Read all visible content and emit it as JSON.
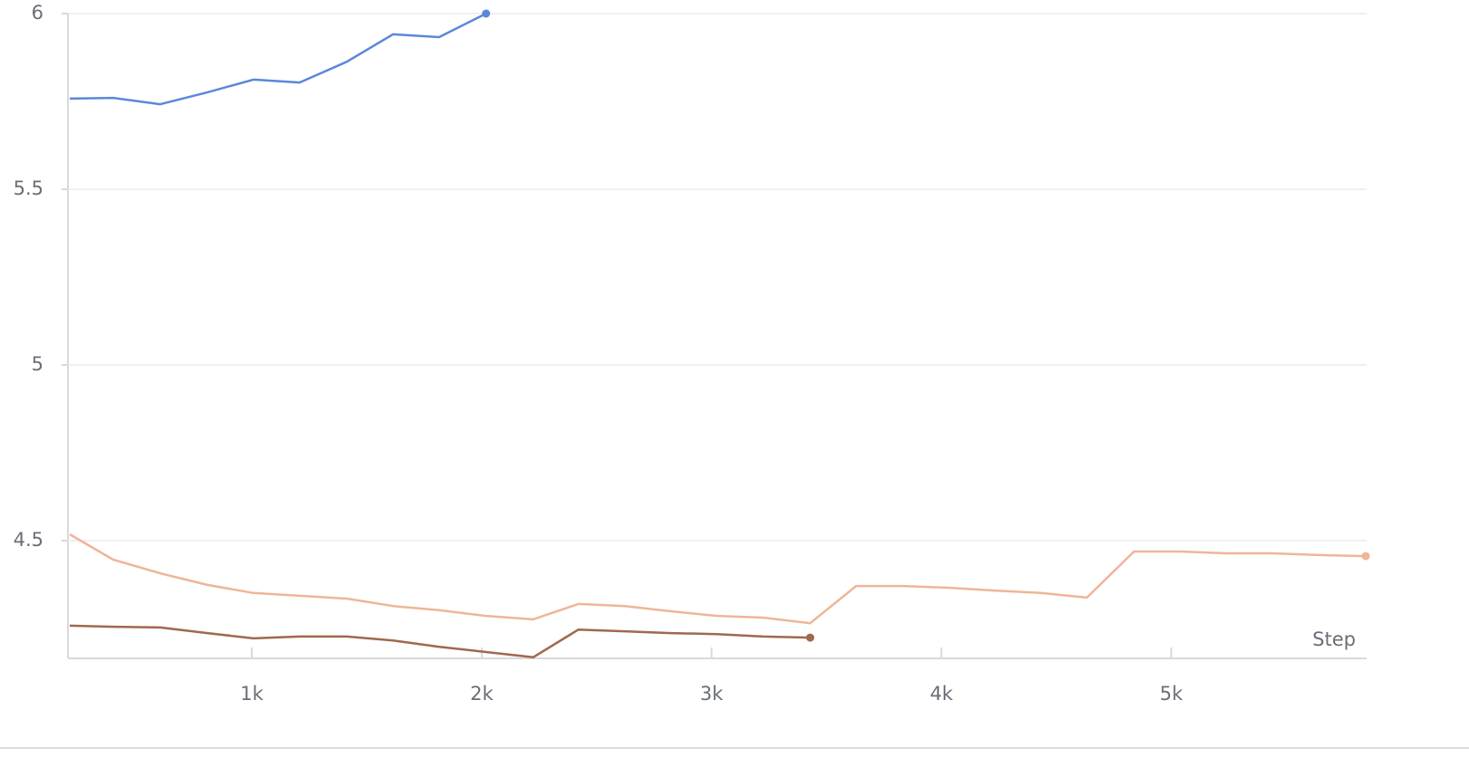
{
  "chart_data": {
    "type": "line",
    "xlabel": "Step",
    "x": [
      208,
      397,
      602,
      807,
      1007,
      1208,
      1413,
      1614,
      1815,
      2019,
      2224,
      2421,
      2622,
      2823,
      3024,
      3224,
      3429,
      3629,
      3830,
      4031,
      4231,
      4432,
      4633,
      4838,
      5039,
      5239,
      5440,
      5641,
      5846
    ],
    "series": [
      {
        "color": "#5b87da",
        "values": [
          5.758,
          5.76,
          5.742,
          5.776,
          5.812,
          5.804,
          5.863,
          5.941,
          5.933,
          6.0,
          null,
          null,
          null,
          null,
          null,
          null,
          null,
          null,
          null,
          null,
          null,
          null,
          null,
          null,
          null,
          null,
          null,
          null,
          null
        ]
      },
      {
        "color": "#a0684c",
        "values": [
          4.258,
          4.255,
          4.253,
          4.237,
          4.222,
          4.227,
          4.227,
          4.216,
          4.198,
          4.183,
          4.168,
          4.247,
          4.242,
          4.237,
          4.234,
          4.227,
          4.224,
          null,
          null,
          null,
          null,
          null,
          null,
          null,
          null,
          null,
          null,
          null,
          null
        ]
      },
      {
        "color": "#efb598",
        "values": [
          4.518,
          4.446,
          4.407,
          4.374,
          4.351,
          4.343,
          4.335,
          4.314,
          4.302,
          4.286,
          4.276,
          4.32,
          4.314,
          4.299,
          4.286,
          4.281,
          4.265,
          4.371,
          4.371,
          4.366,
          4.358,
          4.351,
          4.338,
          4.469,
          4.469,
          4.464,
          4.464,
          4.459,
          4.456
        ]
      }
    ],
    "xlim": [
      200,
      5850
    ],
    "ylim": [
      4.165,
      6
    ],
    "xticks": [
      {
        "value": 1000,
        "label": "1k"
      },
      {
        "value": 2000,
        "label": "2k"
      },
      {
        "value": 3000,
        "label": "3k"
      },
      {
        "value": 4000,
        "label": "4k"
      },
      {
        "value": 5000,
        "label": "5k"
      }
    ],
    "yticks": [
      4.5,
      5,
      5.5,
      6
    ],
    "grid": true
  }
}
